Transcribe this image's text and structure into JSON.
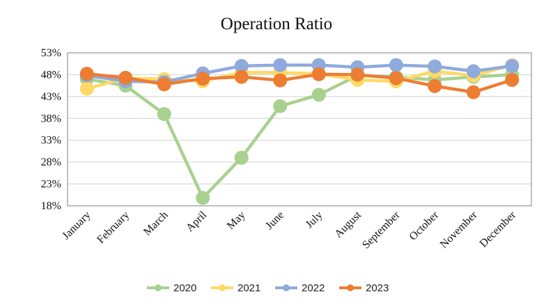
{
  "chart_data": {
    "type": "line",
    "title": "Operation Ratio",
    "xlabel": "",
    "ylabel": "",
    "categories": [
      "January",
      "February",
      "March",
      "April",
      "May",
      "June",
      "July",
      "August",
      "September",
      "October",
      "November",
      "December"
    ],
    "y_ticks": [
      "18%",
      "23%",
      "28%",
      "33%",
      "38%",
      "43%",
      "48%",
      "53%"
    ],
    "ylim": [
      18,
      53
    ],
    "grid": true,
    "legend_position": "bottom",
    "series": [
      {
        "name": "2020",
        "color": "#A9D18E",
        "values": [
          47.0,
          45.5,
          39.0,
          19.8,
          29.0,
          40.8,
          43.4,
          47.8,
          47.5,
          46.8,
          47.5,
          48.0
        ]
      },
      {
        "name": "2021",
        "color": "#FFD966",
        "values": [
          44.8,
          47.2,
          47.0,
          46.5,
          48.5,
          48.5,
          48.2,
          46.8,
          46.5,
          48.8,
          47.8,
          50.2
        ]
      },
      {
        "name": "2022",
        "color": "#8FAADC",
        "values": [
          47.8,
          46.5,
          46.3,
          48.3,
          50.0,
          50.2,
          50.2,
          49.7,
          50.2,
          49.9,
          48.8,
          50.0
        ]
      },
      {
        "name": "2023",
        "color": "#ED7D31",
        "values": [
          48.2,
          47.3,
          45.8,
          47.1,
          47.5,
          46.7,
          48.1,
          48.0,
          47.2,
          45.4,
          44.0,
          46.8
        ]
      }
    ]
  }
}
